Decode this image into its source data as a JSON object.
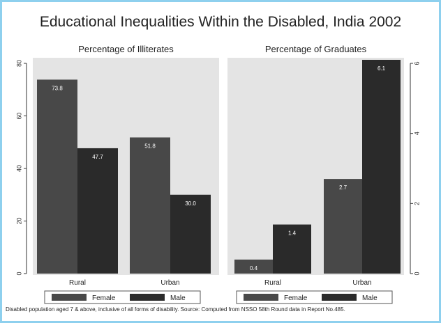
{
  "title": "Educational Inequalities Within the Disabled, India 2002",
  "footnote": "Disabled population aged 7 & above, inclusive of all forms of disability. Source: Computed from NSSO 58th Round data in Report No.485.",
  "colors": {
    "female": "#484848",
    "male": "#2a2a2a",
    "frame": "#8ed0ee",
    "panel": "#e4e4e4"
  },
  "chart_data": [
    {
      "type": "bar",
      "title": "Percentage of Illiterates",
      "categories": [
        "Rural",
        "Urban"
      ],
      "series": [
        {
          "name": "Female",
          "values": [
            73.8,
            51.8
          ],
          "labels": [
            "73.8",
            "51.8"
          ]
        },
        {
          "name": "Male",
          "values": [
            47.7,
            30.0
          ],
          "labels": [
            "47.7",
            "30.0"
          ]
        }
      ],
      "ylim": [
        0,
        80
      ],
      "yticks": [
        "0",
        "20",
        "40",
        "60",
        "80"
      ],
      "yaxis_side": "left",
      "legend": [
        "Female",
        "Male"
      ],
      "legend_position": "bottom"
    },
    {
      "type": "bar",
      "title": "Percentage of Graduates",
      "categories": [
        "Rural",
        "Urban"
      ],
      "series": [
        {
          "name": "Female",
          "values": [
            0.4,
            2.7
          ],
          "labels": [
            "0.4",
            "2.7"
          ]
        },
        {
          "name": "Male",
          "values": [
            1.4,
            6.1
          ],
          "labels": [
            "1.4",
            "6.1"
          ]
        }
      ],
      "ylim": [
        0,
        6
      ],
      "yticks": [
        "0",
        "2",
        "4",
        "6"
      ],
      "yaxis_side": "right",
      "legend": [
        "Female",
        "Male"
      ],
      "legend_position": "bottom"
    }
  ]
}
